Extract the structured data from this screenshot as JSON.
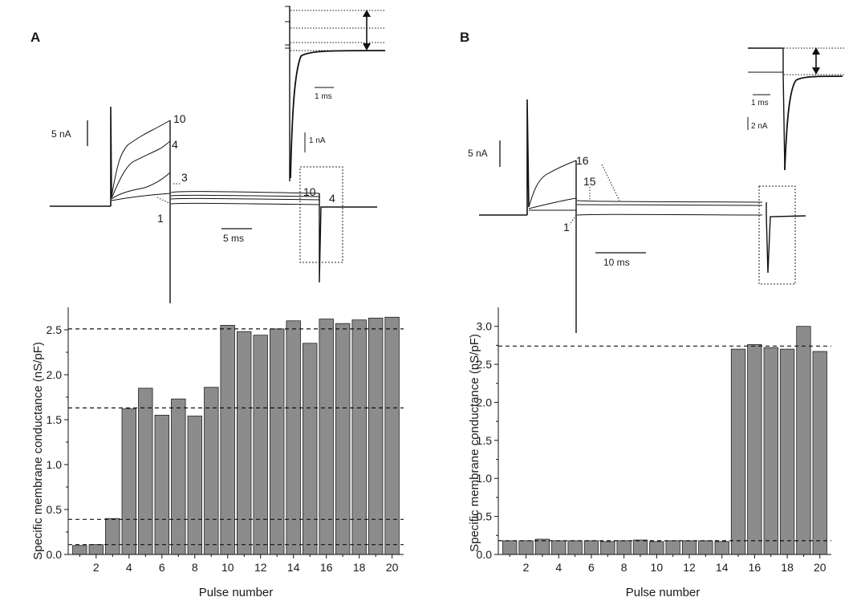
{
  "chart_data": [
    {
      "panel": "A",
      "type": "bar",
      "xlabel": "Pulse number",
      "ylabel": "Specific membrane conductance (nS/pF)",
      "xlim": [
        0.3,
        20.7
      ],
      "ylim": [
        0,
        2.75
      ],
      "x_ticks": [
        "2",
        "4",
        "6",
        "8",
        "10",
        "12",
        "14",
        "16",
        "18",
        "20"
      ],
      "y_ticks": [
        "0.0",
        "0.5",
        "1.0",
        "1.5",
        "2.0",
        "2.5"
      ],
      "categories": [
        1,
        2,
        3,
        4,
        5,
        6,
        7,
        8,
        9,
        10,
        11,
        12,
        13,
        14,
        15,
        16,
        17,
        18,
        19,
        20
      ],
      "values": [
        0.1,
        0.11,
        0.4,
        1.62,
        1.85,
        1.55,
        1.73,
        1.54,
        1.86,
        2.55,
        2.48,
        2.44,
        2.51,
        2.6,
        2.35,
        2.62,
        2.57,
        2.61,
        2.63,
        2.64
      ],
      "bar_color": "#8c8c8c",
      "reference_lines": [
        0.11,
        0.39,
        1.63,
        2.51
      ],
      "inset": {
        "trace_labels": [
          "10",
          "4",
          "3",
          "1",
          "10",
          "4"
        ],
        "scale_current": "5 nA",
        "scale_time": "5 ms",
        "zoom_scale_time": "1 ms",
        "zoom_scale_current": "1 nA"
      }
    },
    {
      "panel": "B",
      "type": "bar",
      "xlabel": "Pulse number",
      "ylabel": "Specific membrane conductance (nS/pF)",
      "xlim": [
        0.3,
        20.7
      ],
      "ylim": [
        0,
        3.25
      ],
      "x_ticks": [
        "2",
        "4",
        "6",
        "8",
        "10",
        "12",
        "14",
        "16",
        "18",
        "20"
      ],
      "y_ticks": [
        "0.0",
        "0.5",
        "1.0",
        "1.5",
        "2.0",
        "2.5",
        "3.0"
      ],
      "categories": [
        1,
        2,
        3,
        4,
        5,
        6,
        7,
        8,
        9,
        10,
        11,
        12,
        13,
        14,
        15,
        16,
        17,
        18,
        19,
        20
      ],
      "values": [
        0.18,
        0.18,
        0.2,
        0.18,
        0.18,
        0.18,
        0.17,
        0.18,
        0.19,
        0.17,
        0.18,
        0.18,
        0.18,
        0.17,
        2.7,
        2.76,
        2.72,
        2.7,
        3.0,
        2.67
      ],
      "bar_color": "#8c8c8c",
      "reference_lines": [
        0.18,
        2.74
      ],
      "inset": {
        "trace_labels": [
          "16",
          "15",
          "1"
        ],
        "scale_current": "5 nA",
        "scale_time": "10 ms",
        "zoom_scale_time": "1 ms",
        "zoom_scale_current": "2 nA"
      }
    }
  ]
}
